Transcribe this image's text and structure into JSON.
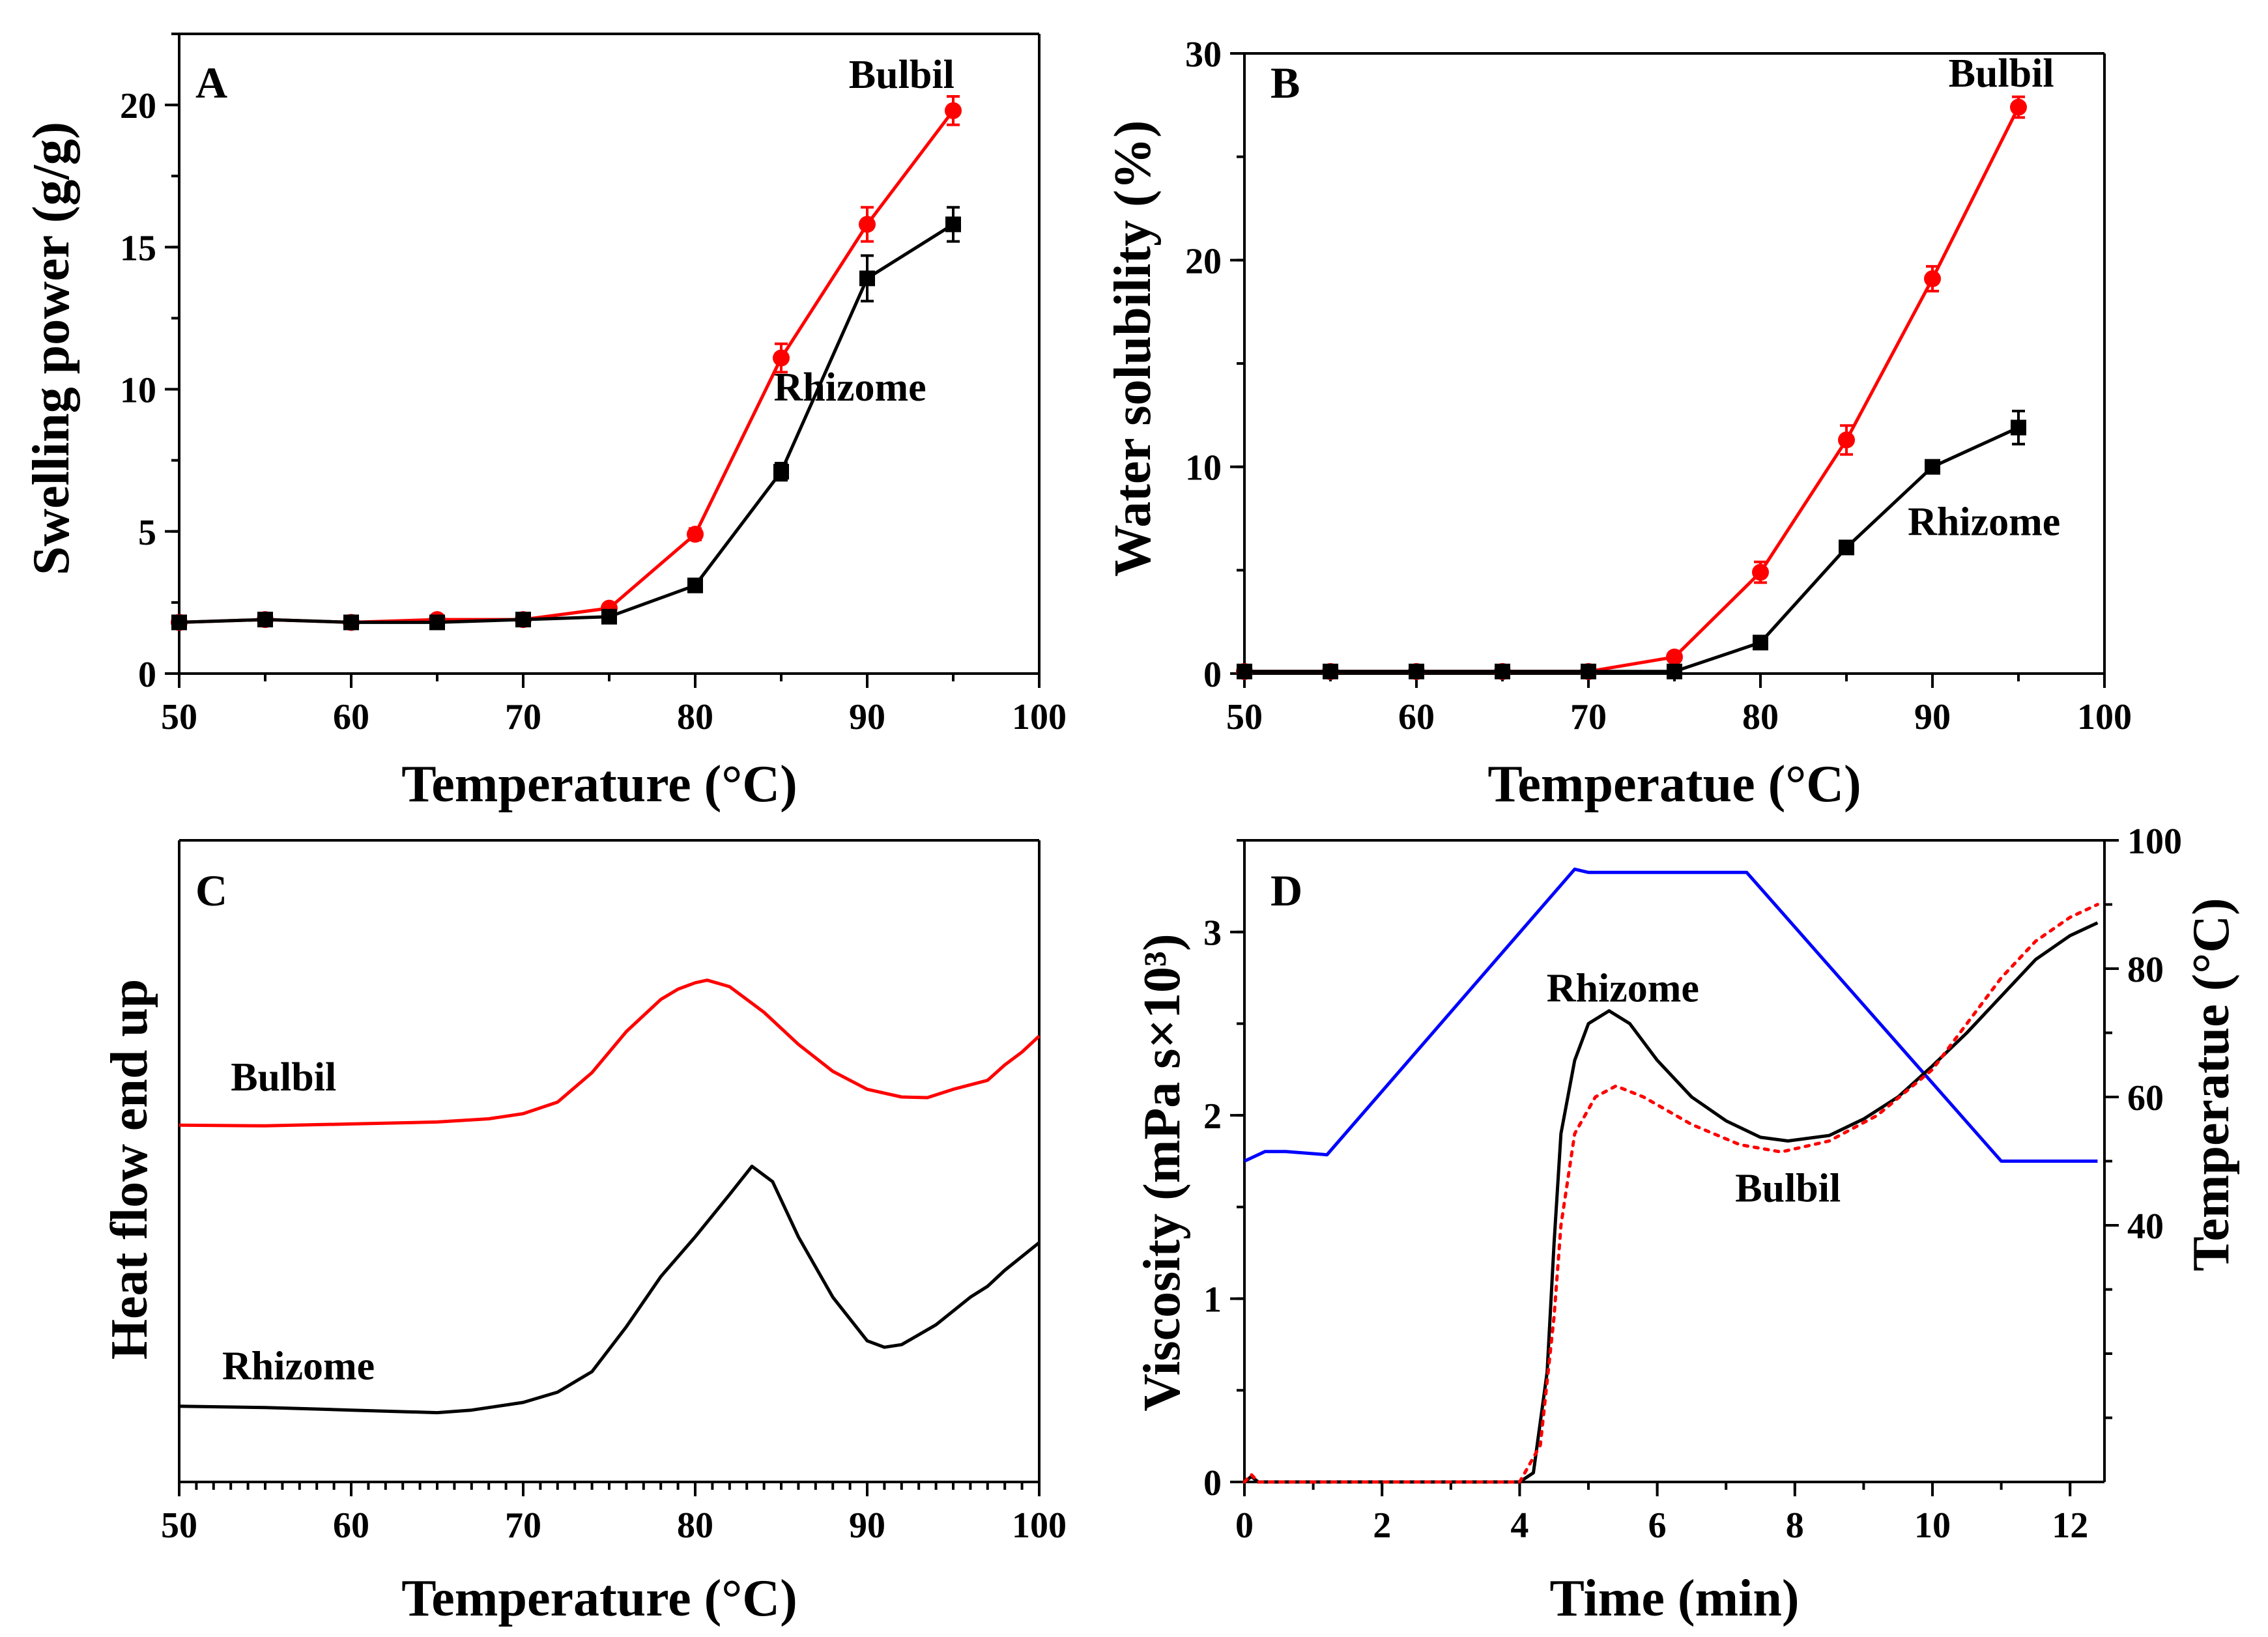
{
  "colors": {
    "bulbil": "#ff0000",
    "rhizome": "#000000",
    "temperature_profile": "#0000ff"
  },
  "chart_data": [
    {
      "id": "A",
      "type": "line",
      "panel_label": "A",
      "xlabel": "Temperature (°C)",
      "ylabel": "Swelling power (g/g)",
      "xlim": [
        50,
        100
      ],
      "ylim": [
        0,
        22.5
      ],
      "xticks": [
        50,
        60,
        70,
        80,
        90,
        100
      ],
      "yticks": [
        0,
        5,
        10,
        15,
        20
      ],
      "grid": false,
      "x": [
        50,
        55,
        60,
        65,
        70,
        75,
        80,
        85,
        90,
        95
      ],
      "series": [
        {
          "name": "Bulbil",
          "color": "#ff0000",
          "marker": "circle",
          "values": [
            1.8,
            1.9,
            1.8,
            1.9,
            1.9,
            2.3,
            4.9,
            11.1,
            15.8,
            19.8
          ],
          "errors": [
            0.1,
            0.1,
            0.1,
            0.1,
            0.1,
            0.1,
            0.2,
            0.5,
            0.6,
            0.5
          ]
        },
        {
          "name": "Rhizome",
          "color": "#000000",
          "marker": "square",
          "values": [
            1.8,
            1.9,
            1.8,
            1.8,
            1.9,
            2.0,
            3.1,
            7.1,
            13.9,
            15.8
          ],
          "errors": [
            0.1,
            0.1,
            0.1,
            0.1,
            0.1,
            0.1,
            0.2,
            0.3,
            0.8,
            0.6
          ]
        }
      ],
      "annotations": [
        {
          "text": "Bulbil",
          "at": [
            92,
            20.6
          ]
        },
        {
          "text": "Rhizome",
          "at": [
            89,
            9.6
          ]
        }
      ]
    },
    {
      "id": "B",
      "type": "line",
      "panel_label": "B",
      "xlabel": "Temperatue (°C)",
      "ylabel": "Water solubility (%)",
      "xlim": [
        50,
        100
      ],
      "ylim": [
        0,
        30
      ],
      "xticks": [
        50,
        60,
        70,
        80,
        90,
        100
      ],
      "yticks": [
        0,
        10,
        20,
        30
      ],
      "grid": false,
      "x": [
        50,
        55,
        60,
        65,
        70,
        75,
        80,
        85,
        90,
        95
      ],
      "series": [
        {
          "name": "Bulbil",
          "color": "#ff0000",
          "marker": "circle",
          "values": [
            0.1,
            0.1,
            0.1,
            0.1,
            0.1,
            0.8,
            4.9,
            11.3,
            19.1,
            27.4
          ],
          "errors": [
            0.1,
            0.1,
            0.1,
            0.1,
            0.1,
            0.2,
            0.5,
            0.7,
            0.6,
            0.5
          ]
        },
        {
          "name": "Rhizome",
          "color": "#000000",
          "marker": "square",
          "values": [
            0.1,
            0.1,
            0.1,
            0.1,
            0.1,
            0.1,
            1.5,
            6.1,
            10.0,
            11.9
          ],
          "errors": [
            0.1,
            0.1,
            0.1,
            0.1,
            0.1,
            0.1,
            0.2,
            0.3,
            0.3,
            0.8
          ]
        }
      ],
      "annotations": [
        {
          "text": "Bulbil",
          "at": [
            94,
            28.4
          ]
        },
        {
          "text": "Rhizome",
          "at": [
            93,
            6.7
          ]
        }
      ]
    },
    {
      "id": "C",
      "type": "line",
      "panel_label": "C",
      "xlabel": "Temperature (°C)",
      "ylabel": "Heat flow end up",
      "xlim": [
        50,
        100
      ],
      "ylim": [
        0,
        10
      ],
      "xticks": [
        50,
        60,
        70,
        80,
        90,
        100
      ],
      "xtick_minor_step": 1,
      "yticks": [],
      "grid": false,
      "series": [
        {
          "name": "Bulbil",
          "color": "#ff0000",
          "x": [
            50,
            55,
            60,
            65,
            68,
            70,
            72,
            74,
            76,
            78,
            79,
            80,
            80.7,
            82,
            84,
            86,
            88,
            90,
            92,
            93.5,
            95,
            97,
            98,
            99,
            100
          ],
          "values": [
            5.56,
            5.55,
            5.58,
            5.61,
            5.66,
            5.74,
            5.92,
            6.38,
            7.02,
            7.52,
            7.68,
            7.78,
            7.82,
            7.72,
            7.32,
            6.82,
            6.4,
            6.12,
            6.0,
            5.99,
            6.12,
            6.26,
            6.5,
            6.7,
            6.95
          ]
        },
        {
          "name": "Rhizome",
          "color": "#000000",
          "x": [
            50,
            55,
            60,
            65,
            67,
            70,
            72,
            74,
            76,
            78,
            80,
            82,
            83.3,
            84.5,
            86,
            88,
            90,
            91,
            92,
            94,
            96,
            97,
            98,
            100
          ],
          "values": [
            1.18,
            1.16,
            1.12,
            1.08,
            1.12,
            1.24,
            1.4,
            1.72,
            2.42,
            3.2,
            3.82,
            4.48,
            4.92,
            4.68,
            3.82,
            2.88,
            2.2,
            2.1,
            2.14,
            2.45,
            2.88,
            3.05,
            3.3,
            3.73
          ]
        }
      ],
      "annotations": [
        {
          "text": "Bulbil",
          "at": [
            53,
            6.1
          ]
        },
        {
          "text": "Rhizome",
          "at": [
            52.5,
            1.6
          ]
        }
      ]
    },
    {
      "id": "D",
      "type": "line",
      "panel_label": "D",
      "xlabel": "Time (min)",
      "ylabel": "Viscosity (mPa s×10³)",
      "y2label": "Temperatue (°C)",
      "xlim": [
        0,
        12.5
      ],
      "ylim": [
        0,
        3.5
      ],
      "y2lim": [
        0,
        100
      ],
      "xticks": [
        0,
        2,
        4,
        6,
        8,
        10,
        12
      ],
      "yticks": [
        0,
        1,
        2,
        3
      ],
      "y2ticks": [
        40,
        60,
        80,
        100
      ],
      "grid": false,
      "series": [
        {
          "name": "Temperature",
          "axis": "right",
          "color": "#0000ff",
          "style": "solid",
          "x": [
            0,
            0.3,
            0.6,
            1.2,
            4.8,
            5.0,
            7.3,
            11.0,
            12.4
          ],
          "values": [
            50,
            51.5,
            51.5,
            51.0,
            95.5,
            95,
            95,
            50.0,
            50.0
          ]
        },
        {
          "name": "Rhizome",
          "axis": "left",
          "color": "#000000",
          "style": "solid",
          "x": [
            0,
            0.1,
            0.2,
            0.5,
            4.0,
            4.2,
            4.4,
            4.5,
            4.6,
            4.8,
            5.0,
            5.3,
            5.6,
            6.0,
            6.5,
            7.0,
            7.5,
            7.9,
            8.5,
            9.0,
            9.5,
            10.0,
            10.5,
            11.0,
            11.5,
            12.0,
            12.4
          ],
          "values": [
            0.0,
            0.03,
            0.0,
            0.0,
            0.0,
            0.05,
            0.6,
            1.3,
            1.9,
            2.3,
            2.5,
            2.57,
            2.5,
            2.3,
            2.1,
            1.97,
            1.88,
            1.86,
            1.89,
            1.98,
            2.1,
            2.27,
            2.45,
            2.65,
            2.85,
            2.98,
            3.05
          ]
        },
        {
          "name": "Bulbil",
          "axis": "left",
          "color": "#ff0000",
          "style": "dotted",
          "x": [
            0,
            0.1,
            0.2,
            0.5,
            4.0,
            4.3,
            4.5,
            4.6,
            4.8,
            5.1,
            5.4,
            5.8,
            6.5,
            7.2,
            7.8,
            8.5,
            9.2,
            10.0,
            10.5,
            11.0,
            11.5,
            12.0,
            12.4
          ],
          "values": [
            0.0,
            0.04,
            0.0,
            0.0,
            0.0,
            0.2,
            0.9,
            1.4,
            1.9,
            2.1,
            2.16,
            2.1,
            1.95,
            1.84,
            1.8,
            1.86,
            2.0,
            2.25,
            2.5,
            2.75,
            2.95,
            3.08,
            3.15
          ]
        }
      ],
      "annotations": [
        {
          "text": "Rhizome",
          "at": [
            5.5,
            2.62
          ]
        },
        {
          "text": "Bulbil",
          "at": [
            7.9,
            1.53
          ]
        }
      ]
    }
  ]
}
